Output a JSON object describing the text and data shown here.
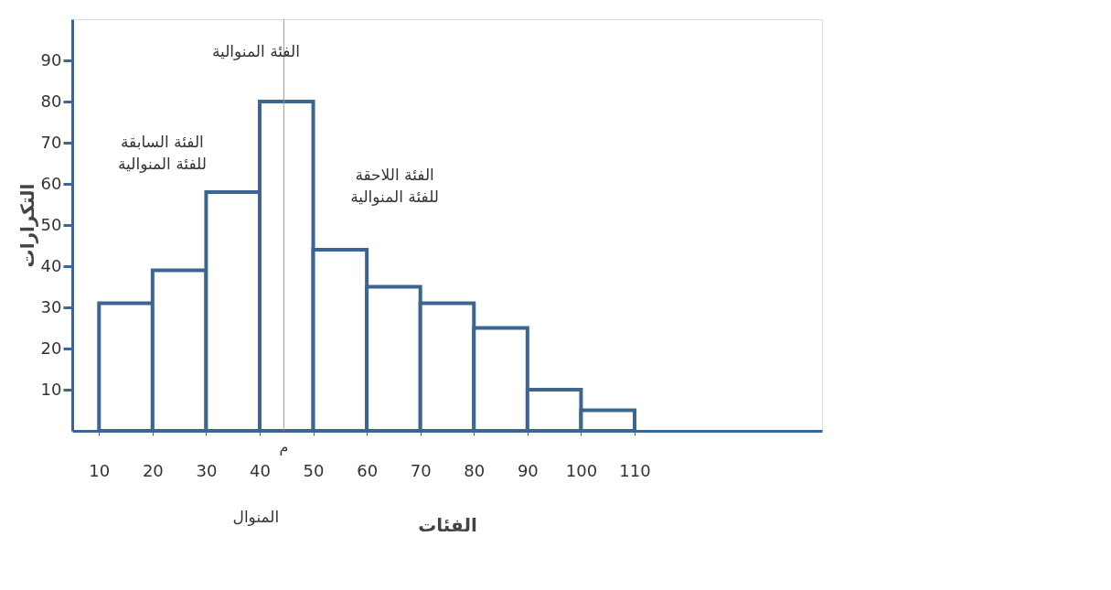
{
  "chart_data": {
    "type": "histogram",
    "xlabel": "الفئات",
    "ylabel": "التكرارات",
    "bins": [
      10,
      20,
      30,
      40,
      50,
      60,
      70,
      80,
      90,
      100,
      110
    ],
    "values": [
      31,
      39,
      58,
      80,
      44,
      35,
      31,
      25,
      10,
      5
    ],
    "color": "#3d6591",
    "xlim": [
      5,
      145
    ],
    "ylim": [
      0,
      100
    ],
    "xticks": [
      10,
      20,
      30,
      40,
      50,
      60,
      70,
      80,
      90,
      100,
      110
    ],
    "yticks": [
      10,
      20,
      30,
      40,
      50,
      60,
      70,
      80,
      90
    ],
    "grid": false,
    "ref_lines": [
      {
        "axis": "x",
        "value": 44.5,
        "label": "م"
      }
    ],
    "annotations": [
      "الفئة المنوالية",
      "الفئة السابقة\nللفئة المنوالية",
      "الفئة اللاحقة\nللفئة المنوالية",
      "المنوال"
    ]
  }
}
